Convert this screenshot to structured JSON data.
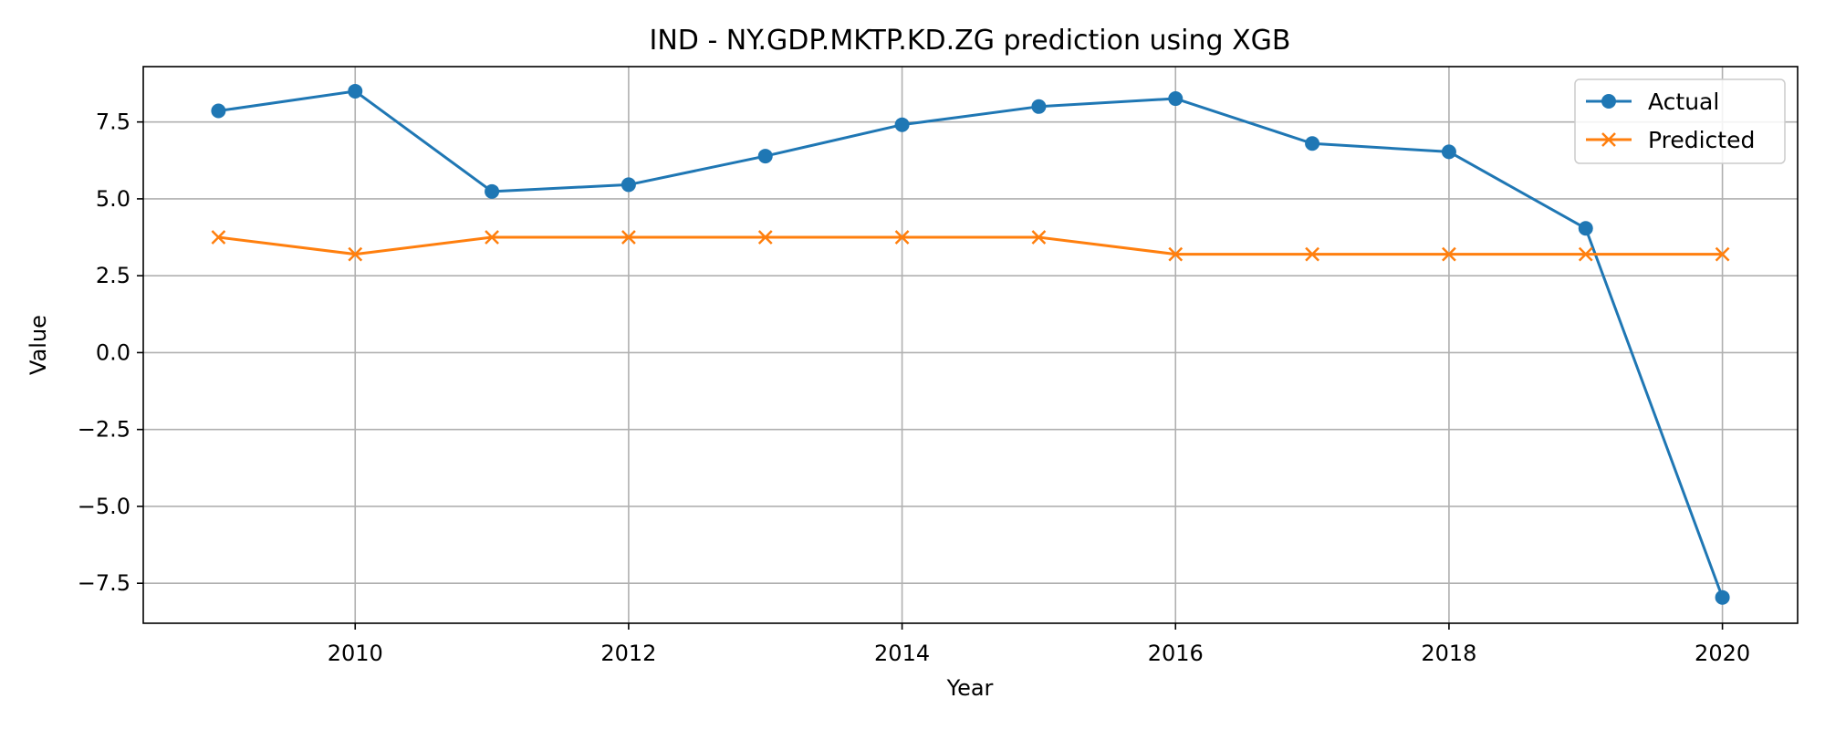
{
  "chart_data": {
    "type": "line",
    "title": "IND - NY.GDP.MKTP.KD.ZG prediction using XGB",
    "xlabel": "Year",
    "ylabel": "Value",
    "x": [
      2009,
      2010,
      2011,
      2012,
      2013,
      2014,
      2015,
      2016,
      2017,
      2018,
      2019,
      2020
    ],
    "xlim": [
      2008.45,
      2020.55
    ],
    "ylim": [
      -8.8,
      9.3
    ],
    "xticks": [
      2010,
      2012,
      2014,
      2016,
      2018,
      2020
    ],
    "xtick_labels": [
      "2010",
      "2012",
      "2014",
      "2016",
      "2018",
      "2020"
    ],
    "yticks": [
      -7.5,
      -5.0,
      -2.5,
      0.0,
      2.5,
      5.0,
      7.5
    ],
    "ytick_labels": [
      "−7.5",
      "−5.0",
      "−2.5",
      "0.0",
      "2.5",
      "5.0",
      "7.5"
    ],
    "grid": true,
    "legend_position": "top-right",
    "series": [
      {
        "name": "Actual",
        "color": "#1f77b4",
        "marker": "circle",
        "values": [
          7.86,
          8.5,
          5.24,
          5.46,
          6.39,
          7.41,
          8.0,
          8.26,
          6.8,
          6.53,
          4.04,
          -7.96
        ]
      },
      {
        "name": "Predicted",
        "color": "#ff7f0e",
        "marker": "x",
        "values": [
          3.75,
          3.2,
          3.75,
          3.75,
          3.75,
          3.75,
          3.75,
          3.2,
          3.2,
          3.2,
          3.2,
          3.2
        ]
      }
    ]
  }
}
